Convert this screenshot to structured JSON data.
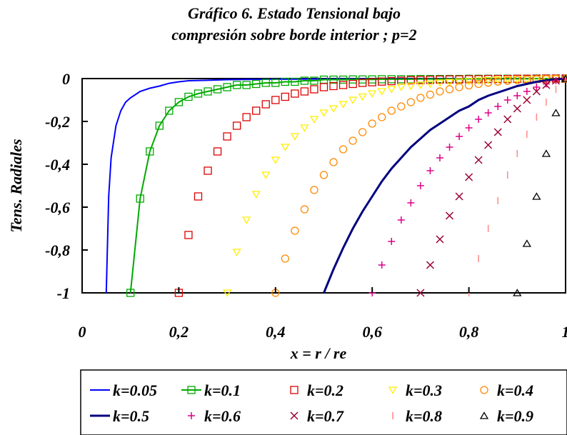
{
  "chart_data": {
    "type": "scatter",
    "title": [
      "Gráfico 6. Estado Tensional bajo",
      "compresión sobre borde interior ; p=2"
    ],
    "xlabel": "x = r / re",
    "ylabel": "Tens. Radiales",
    "xlim": [
      0,
      1
    ],
    "ylim": [
      -1,
      0
    ],
    "x_ticks": [
      "0",
      "0,2",
      "0,4",
      "0,6",
      "0,8",
      "1"
    ],
    "y_ticks": [
      "0",
      "-0,2",
      "-0,4",
      "-0,6",
      "-0,8",
      "-1"
    ],
    "grid": false,
    "legend_position": "bottom",
    "series": [
      {
        "name": "k=0.05",
        "color": "#0000ff",
        "style": "line",
        "marker": "none",
        "x": [
          0.05,
          0.055,
          0.06,
          0.07,
          0.08,
          0.09,
          0.1,
          0.12,
          0.14,
          0.16,
          0.18,
          0.2,
          0.22,
          0.26,
          0.3,
          0.4,
          0.5,
          0.6,
          0.7,
          0.8,
          0.9,
          1.0
        ],
        "y": [
          -1,
          -0.55,
          -0.37,
          -0.22,
          -0.15,
          -0.11,
          -0.09,
          -0.06,
          -0.045,
          -0.035,
          -0.022,
          -0.015,
          -0.01,
          -0.008,
          -0.005,
          -0.003,
          -0.002,
          -0.001,
          -0.001,
          -0.0005,
          -0.0003,
          0
        ]
      },
      {
        "name": "k=0.1",
        "color": "#00aa00",
        "style": "line",
        "marker": "square",
        "x": [
          0.1,
          0.12,
          0.14,
          0.16,
          0.18,
          0.2,
          0.22,
          0.24,
          0.26,
          0.28,
          0.3,
          0.32,
          0.34,
          0.36,
          0.38,
          0.4,
          0.42,
          0.44,
          0.46,
          0.48,
          0.5,
          0.52,
          0.54,
          0.56,
          0.58,
          0.6,
          0.62,
          0.64,
          0.66,
          0.68,
          0.7,
          0.72,
          0.74,
          0.76,
          0.78,
          0.8,
          0.82,
          0.84,
          0.86,
          0.88,
          0.9,
          0.92,
          0.94,
          0.96,
          0.98,
          1.0
        ],
        "y": [
          -1,
          -0.56,
          -0.34,
          -0.22,
          -0.15,
          -0.11,
          -0.085,
          -0.07,
          -0.06,
          -0.05,
          -0.04,
          -0.03,
          -0.03,
          -0.025,
          -0.02,
          -0.02,
          -0.015,
          -0.015,
          -0.01,
          -0.01,
          -0.005,
          -0.005,
          -0.005,
          -0.004,
          -0.004,
          -0.004,
          -0.003,
          -0.003,
          -0.003,
          -0.003,
          -0.002,
          -0.002,
          -0.002,
          -0.002,
          -0.002,
          -0.001,
          -0.001,
          -0.001,
          -0.001,
          -0.001,
          -0.001,
          -0.001,
          0,
          0,
          0,
          0
        ]
      },
      {
        "name": "k=0.2",
        "color": "#dd0000",
        "style": "marker",
        "marker": "square",
        "x": [
          0.2,
          0.22,
          0.24,
          0.26,
          0.28,
          0.3,
          0.32,
          0.34,
          0.36,
          0.38,
          0.4,
          0.42,
          0.44,
          0.46,
          0.48,
          0.5,
          0.52,
          0.54,
          0.56,
          0.58,
          0.6,
          0.62,
          0.64,
          0.66,
          0.68,
          0.7,
          0.72,
          0.74,
          0.76,
          0.78,
          0.8,
          0.82,
          0.84,
          0.86,
          0.88,
          0.9,
          0.92,
          0.94,
          0.96,
          0.98,
          1.0
        ],
        "y": [
          -1,
          -0.73,
          -0.55,
          -0.43,
          -0.34,
          -0.27,
          -0.22,
          -0.18,
          -0.15,
          -0.12,
          -0.1,
          -0.085,
          -0.07,
          -0.06,
          -0.05,
          -0.04,
          -0.035,
          -0.03,
          -0.025,
          -0.02,
          -0.017,
          -0.014,
          -0.012,
          -0.01,
          -0.008,
          -0.007,
          -0.006,
          -0.005,
          -0.004,
          -0.004,
          -0.003,
          -0.003,
          -0.002,
          -0.002,
          -0.002,
          -0.001,
          -0.001,
          -0.001,
          0,
          0,
          0
        ]
      },
      {
        "name": "k=0.3",
        "color": "#ffee00",
        "style": "marker",
        "marker": "triangle-down",
        "x": [
          0.3,
          0.32,
          0.34,
          0.36,
          0.38,
          0.4,
          0.42,
          0.44,
          0.46,
          0.48,
          0.5,
          0.52,
          0.54,
          0.56,
          0.58,
          0.6,
          0.62,
          0.64,
          0.66,
          0.68,
          0.7,
          0.72,
          0.74,
          0.76,
          0.78,
          0.8,
          0.82,
          0.84,
          0.86,
          0.88,
          0.9,
          0.92,
          0.94,
          0.96,
          0.98,
          1.0
        ],
        "y": [
          -1,
          -0.81,
          -0.66,
          -0.54,
          -0.45,
          -0.38,
          -0.32,
          -0.27,
          -0.23,
          -0.19,
          -0.16,
          -0.14,
          -0.12,
          -0.1,
          -0.085,
          -0.07,
          -0.06,
          -0.05,
          -0.04,
          -0.035,
          -0.03,
          -0.025,
          -0.02,
          -0.017,
          -0.014,
          -0.012,
          -0.01,
          -0.008,
          -0.006,
          -0.005,
          -0.004,
          -0.003,
          -0.002,
          -0.001,
          -0.001,
          0
        ]
      },
      {
        "name": "k=0.4",
        "color": "#ff8800",
        "style": "marker",
        "marker": "circle",
        "x": [
          0.4,
          0.42,
          0.44,
          0.46,
          0.48,
          0.5,
          0.52,
          0.54,
          0.56,
          0.58,
          0.6,
          0.62,
          0.64,
          0.66,
          0.68,
          0.7,
          0.72,
          0.74,
          0.76,
          0.78,
          0.8,
          0.82,
          0.84,
          0.86,
          0.88,
          0.9,
          0.92,
          0.94,
          0.96,
          0.98,
          1.0
        ],
        "y": [
          -1,
          -0.84,
          -0.71,
          -0.61,
          -0.52,
          -0.45,
          -0.39,
          -0.33,
          -0.29,
          -0.25,
          -0.21,
          -0.18,
          -0.15,
          -0.13,
          -0.11,
          -0.09,
          -0.075,
          -0.06,
          -0.05,
          -0.04,
          -0.032,
          -0.025,
          -0.019,
          -0.014,
          -0.01,
          -0.007,
          -0.005,
          -0.003,
          -0.002,
          -0.001,
          0
        ]
      },
      {
        "name": "k=0.5",
        "color": "#000080",
        "style": "line-thick",
        "marker": "none",
        "x": [
          0.5,
          0.52,
          0.54,
          0.56,
          0.58,
          0.6,
          0.62,
          0.64,
          0.66,
          0.68,
          0.7,
          0.72,
          0.74,
          0.76,
          0.78,
          0.8,
          0.82,
          0.84,
          0.86,
          0.88,
          0.9,
          0.92,
          0.94,
          0.96,
          0.98,
          1.0
        ],
        "y": [
          -1,
          -0.89,
          -0.79,
          -0.7,
          -0.62,
          -0.55,
          -0.48,
          -0.42,
          -0.37,
          -0.32,
          -0.28,
          -0.24,
          -0.21,
          -0.18,
          -0.15,
          -0.13,
          -0.1,
          -0.08,
          -0.065,
          -0.05,
          -0.035,
          -0.025,
          -0.015,
          -0.008,
          -0.003,
          0
        ]
      },
      {
        "name": "k=0.6",
        "color": "#dd0088",
        "style": "marker",
        "marker": "plus",
        "x": [
          0.6,
          0.62,
          0.64,
          0.66,
          0.68,
          0.7,
          0.72,
          0.74,
          0.76,
          0.78,
          0.8,
          0.82,
          0.84,
          0.86,
          0.88,
          0.9,
          0.92,
          0.94,
          0.96,
          0.98,
          1.0
        ],
        "y": [
          -1,
          -0.87,
          -0.76,
          -0.66,
          -0.58,
          -0.5,
          -0.43,
          -0.37,
          -0.32,
          -0.27,
          -0.23,
          -0.19,
          -0.16,
          -0.13,
          -0.1,
          -0.08,
          -0.06,
          -0.04,
          -0.025,
          -0.01,
          0
        ]
      },
      {
        "name": "k=0.7",
        "color": "#990033",
        "style": "marker",
        "marker": "x",
        "x": [
          0.7,
          0.72,
          0.74,
          0.76,
          0.78,
          0.8,
          0.82,
          0.84,
          0.86,
          0.88,
          0.9,
          0.92,
          0.94,
          0.96,
          0.98,
          1.0
        ],
        "y": [
          -1,
          -0.87,
          -0.75,
          -0.64,
          -0.55,
          -0.46,
          -0.38,
          -0.31,
          -0.25,
          -0.19,
          -0.14,
          -0.1,
          -0.06,
          -0.03,
          -0.01,
          0
        ]
      },
      {
        "name": "k=0.8",
        "color": "#ff8888",
        "style": "marker",
        "marker": "vline",
        "x": [
          0.8,
          0.82,
          0.84,
          0.86,
          0.88,
          0.9,
          0.92,
          0.94,
          0.96,
          0.98,
          1.0
        ],
        "y": [
          -1,
          -0.84,
          -0.7,
          -0.57,
          -0.45,
          -0.35,
          -0.26,
          -0.18,
          -0.11,
          -0.05,
          0
        ]
      },
      {
        "name": "k=0.9",
        "color": "#000000",
        "style": "marker",
        "marker": "triangle-up",
        "x": [
          0.9,
          0.92,
          0.94,
          0.96,
          0.98,
          1.0
        ],
        "y": [
          -1,
          -0.77,
          -0.55,
          -0.35,
          -0.16,
          0
        ]
      }
    ]
  }
}
